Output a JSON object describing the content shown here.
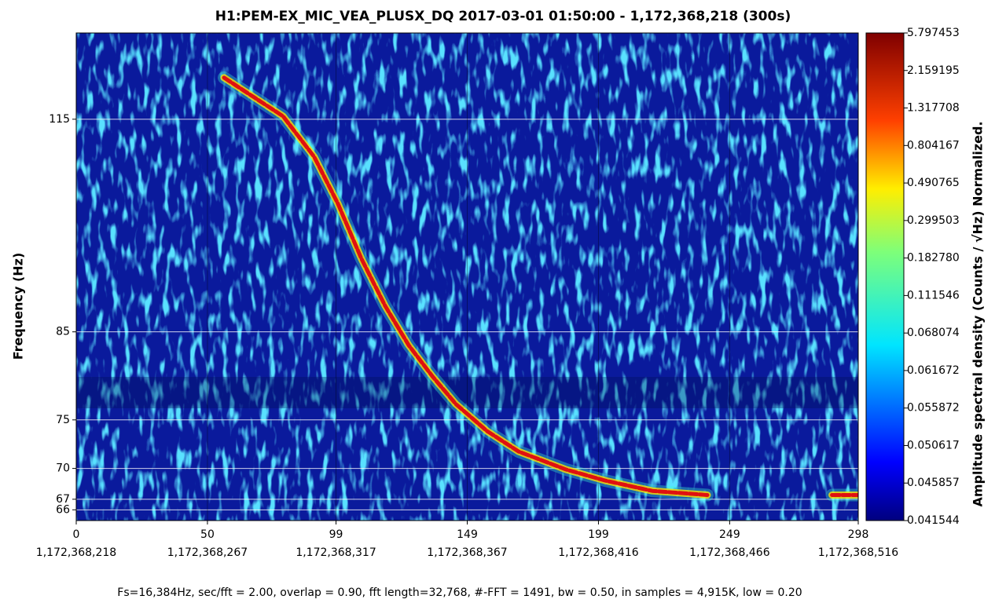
{
  "chart_data": {
    "type": "spectrogram",
    "title": "H1:PEM-EX_MIC_VEA_PLUSX_DQ 2017-03-01 01:50:00 - 1,172,368,218 (300s)",
    "ylabel": "Frequency (Hz)",
    "footnote": "Fs=16,384Hz, sec/fft = 2.00, overlap = 0.90, fft length=32,768, #-FFT = 1491, bw = 0.50, in samples = 4,915K, low = 0.20",
    "xlim": [
      0,
      298
    ],
    "xticks": [
      0,
      50,
      99,
      149,
      199,
      249,
      298
    ],
    "xtick_times": [
      "1,172,368,218",
      "1,172,368,267",
      "1,172,368,317",
      "1,172,368,367",
      "1,172,368,416",
      "1,172,368,466",
      "1,172,368,516"
    ],
    "ylim": [
      65,
      130
    ],
    "yscale": "log",
    "yticks": [
      66,
      67,
      70,
      75,
      85,
      115
    ],
    "grid": true,
    "x": [
      56.3,
      78.8,
      90.7,
      99.7,
      108.7,
      117.7,
      126.7,
      135.7,
      144.7,
      156.6,
      168.6,
      186.6,
      201.6,
      219.5,
      240.5,
      250,
      288,
      298
    ],
    "values": [
      122,
      115.5,
      109,
      102,
      94.3,
      88.2,
      83.4,
      79.8,
      76.7,
      73.8,
      71.7,
      69.9,
      68.8,
      67.8,
      67.4,
      null,
      67.4,
      67.4
    ],
    "color": "#e01010",
    "colorbar": {
      "label": "Amplitude spectral density (Counts / √Hz) Normalized.",
      "ticks": [
        5.797453,
        2.159195,
        1.317708,
        0.804167,
        0.490765,
        0.299503,
        {
          "value": 0.18278,
          "label": "0.182780"
        },
        0.111546,
        0.068074,
        0.061672,
        0.055872,
        0.050617,
        0.045857,
        0.041544
      ]
    }
  }
}
